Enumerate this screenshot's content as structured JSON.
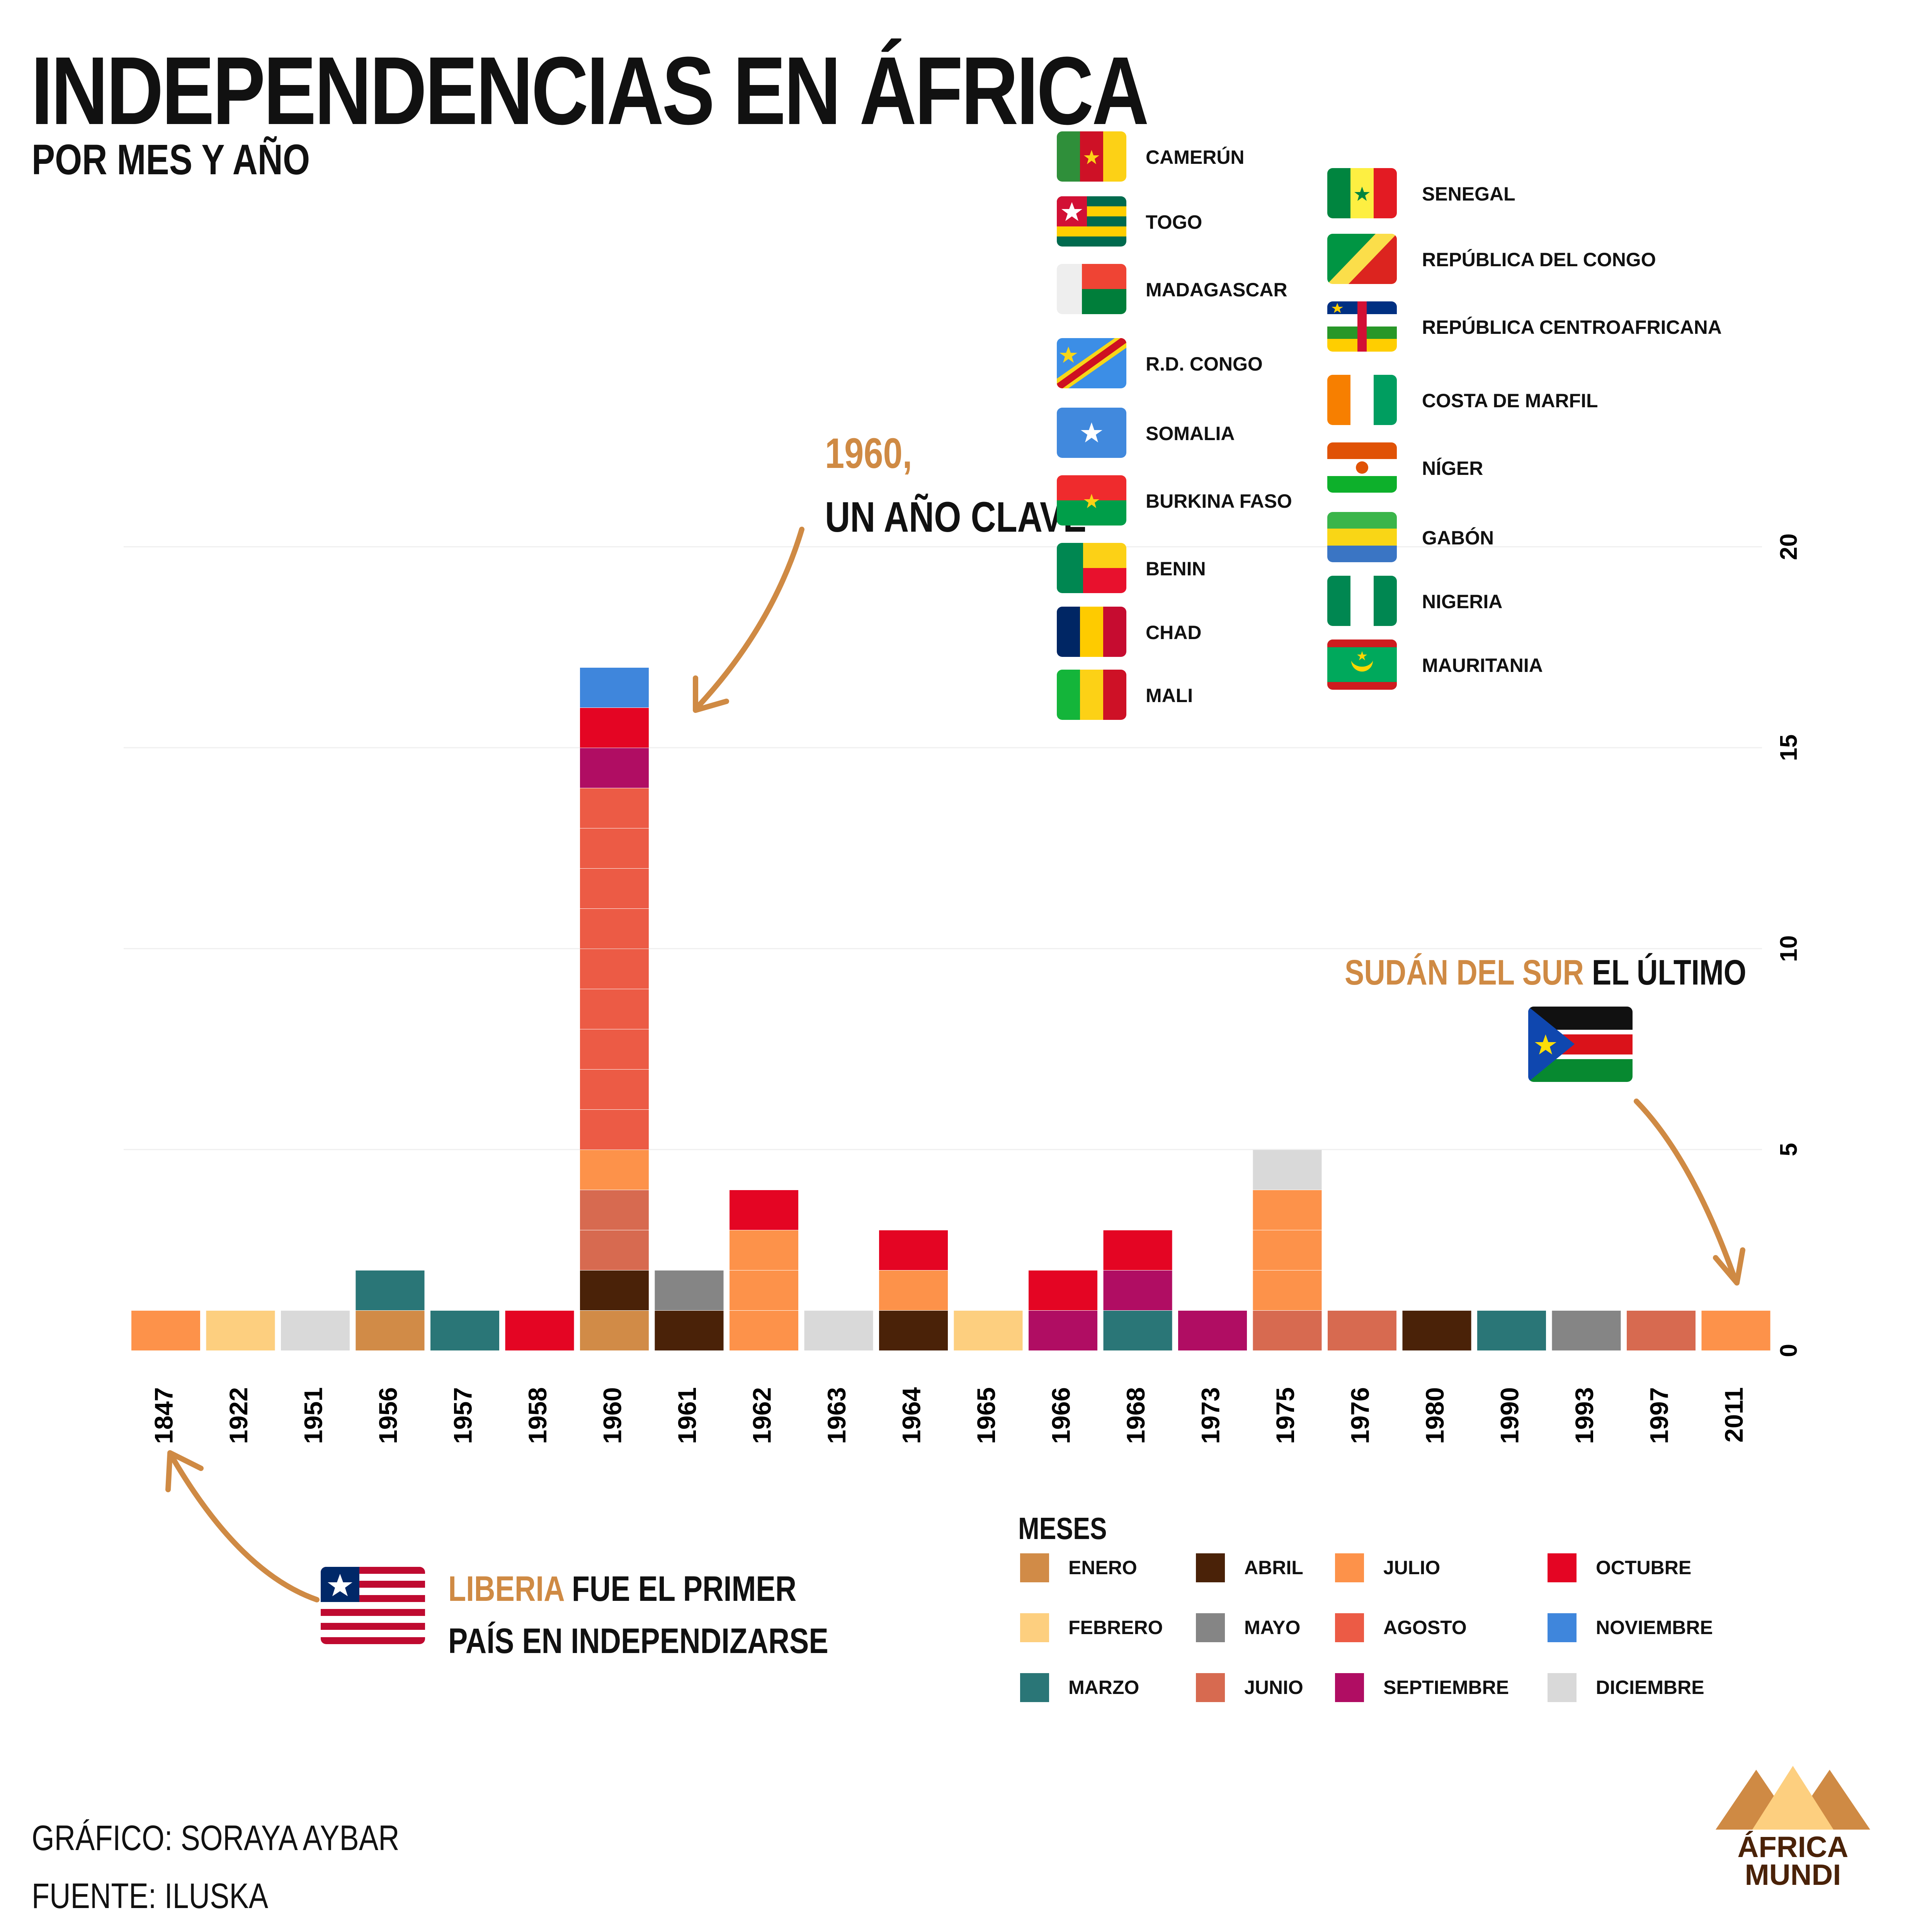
{
  "header": {
    "title": "INDEPENDENCIAS EN ÁFRICA",
    "subtitle": "POR MES Y AÑO"
  },
  "annotations": {
    "year_1960_highlight": "1960,",
    "year_1960_text": "UN AÑO CLAVE",
    "south_sudan_highlight": "SUDÁN DEL SUR",
    "south_sudan_text": "EL ÚLTIMO",
    "liberia_highlight": "LIBERIA",
    "liberia_text_1": "FUE EL PRIMER",
    "liberia_text_2": "PAÍS EN INDEPENDIZARSE"
  },
  "countries_1960": {
    "left": [
      "CAMERÚN",
      "TOGO",
      "MADAGASCAR",
      "R.D. CONGO",
      "SOMALIA",
      "BURKINA FASO",
      "BENIN",
      "CHAD",
      "MALI"
    ],
    "right": [
      "SENEGAL",
      "REPÚBLICA DEL CONGO",
      "REPÚBLICA CENTROAFRICANA",
      "COSTA DE MARFIL",
      "NÍGER",
      "GABÓN",
      "NIGERIA",
      "MAURITANIA"
    ]
  },
  "months_legend": {
    "title": "MESES",
    "items": [
      {
        "name": "ENERO",
        "color": "#d18b47"
      },
      {
        "name": "FEBRERO",
        "color": "#fdcf7f"
      },
      {
        "name": "MARZO",
        "color": "#2a7677"
      },
      {
        "name": "ABRIL",
        "color": "#4a2208"
      },
      {
        "name": "MAYO",
        "color": "#858585"
      },
      {
        "name": "JUNIO",
        "color": "#d76a50"
      },
      {
        "name": "JULIO",
        "color": "#fd924a"
      },
      {
        "name": "AGOSTO",
        "color": "#ec5b45"
      },
      {
        "name": "SEPTIEMBRE",
        "color": "#b00d63"
      },
      {
        "name": "OCTUBRE",
        "color": "#e40523"
      },
      {
        "name": "NOVIEMBRE",
        "color": "#3f86dc"
      },
      {
        "name": "DICIEMBRE",
        "color": "#d9d9d9"
      }
    ]
  },
  "chart_data": {
    "type": "bar",
    "stacked": true,
    "title": "INDEPENDENCIAS EN ÁFRICA",
    "subtitle": "POR MES Y AÑO",
    "categories": [
      "1847",
      "1922",
      "1951",
      "1956",
      "1957",
      "1958",
      "1960",
      "1961",
      "1962",
      "1963",
      "1964",
      "1965",
      "1966",
      "1968",
      "1973",
      "1975",
      "1976",
      "1980",
      "1990",
      "1993",
      "1997",
      "2011"
    ],
    "series": [
      {
        "name": "ENERO",
        "color": "#d18b47",
        "values": [
          0,
          0,
          0,
          1,
          0,
          0,
          1,
          0,
          0,
          0,
          0,
          0,
          0,
          0,
          0,
          0,
          0,
          0,
          0,
          0,
          0,
          0
        ]
      },
      {
        "name": "FEBRERO",
        "color": "#fdcf7f",
        "values": [
          0,
          1,
          0,
          0,
          0,
          0,
          0,
          0,
          0,
          0,
          0,
          1,
          0,
          0,
          0,
          0,
          0,
          0,
          0,
          0,
          0,
          0
        ]
      },
      {
        "name": "MARZO",
        "color": "#2a7677",
        "values": [
          0,
          0,
          0,
          1,
          1,
          0,
          0,
          0,
          0,
          0,
          0,
          0,
          0,
          1,
          0,
          0,
          0,
          0,
          1,
          0,
          0,
          0
        ]
      },
      {
        "name": "ABRIL",
        "color": "#4a2208",
        "values": [
          0,
          0,
          0,
          0,
          0,
          0,
          1,
          1,
          0,
          0,
          1,
          0,
          0,
          0,
          0,
          0,
          0,
          1,
          0,
          0,
          0,
          0
        ]
      },
      {
        "name": "MAYO",
        "color": "#858585",
        "values": [
          0,
          0,
          0,
          0,
          0,
          0,
          0,
          1,
          0,
          0,
          0,
          0,
          0,
          0,
          0,
          0,
          0,
          0,
          0,
          1,
          0,
          0
        ]
      },
      {
        "name": "JUNIO",
        "color": "#d76a50",
        "values": [
          0,
          0,
          0,
          0,
          0,
          0,
          2,
          0,
          0,
          0,
          0,
          0,
          0,
          0,
          0,
          1,
          1,
          0,
          0,
          0,
          1,
          0
        ]
      },
      {
        "name": "JULIO",
        "color": "#fd924a",
        "values": [
          1,
          0,
          0,
          0,
          0,
          0,
          1,
          0,
          3,
          0,
          1,
          0,
          0,
          0,
          0,
          3,
          0,
          0,
          0,
          0,
          0,
          1
        ]
      },
      {
        "name": "AGOSTO",
        "color": "#ec5b45",
        "values": [
          0,
          0,
          0,
          0,
          0,
          0,
          9,
          0,
          0,
          0,
          0,
          0,
          0,
          0,
          0,
          0,
          0,
          0,
          0,
          0,
          0,
          0
        ]
      },
      {
        "name": "SEPTIEMBRE",
        "color": "#b00d63",
        "values": [
          0,
          0,
          0,
          0,
          0,
          0,
          1,
          0,
          0,
          0,
          0,
          0,
          1,
          1,
          1,
          0,
          0,
          0,
          0,
          0,
          0,
          0
        ]
      },
      {
        "name": "OCTUBRE",
        "color": "#e40523",
        "values": [
          0,
          0,
          0,
          0,
          0,
          1,
          1,
          0,
          1,
          0,
          1,
          0,
          1,
          1,
          0,
          0,
          0,
          0,
          0,
          0,
          0,
          0
        ]
      },
      {
        "name": "NOVIEMBRE",
        "color": "#3f86dc",
        "values": [
          0,
          0,
          0,
          0,
          0,
          0,
          1,
          0,
          0,
          0,
          0,
          0,
          0,
          0,
          0,
          0,
          0,
          0,
          0,
          0,
          0,
          0
        ]
      },
      {
        "name": "DICIEMBRE",
        "color": "#d9d9d9",
        "values": [
          0,
          0,
          1,
          0,
          0,
          0,
          0,
          0,
          0,
          1,
          0,
          0,
          0,
          0,
          0,
          1,
          0,
          0,
          0,
          0,
          0,
          0
        ]
      }
    ],
    "y_ticks": [
      "0",
      "5",
      "10",
      "15",
      "20"
    ],
    "ylim": [
      0,
      20
    ],
    "grid": true,
    "y_axis_position": "right"
  },
  "footer": {
    "credit": "GRÁFICO: SORAYA AYBAR",
    "source": "FUENTE: ILUSKA",
    "logo_line1": "ÁFRICA",
    "logo_line2": "MUNDI"
  }
}
